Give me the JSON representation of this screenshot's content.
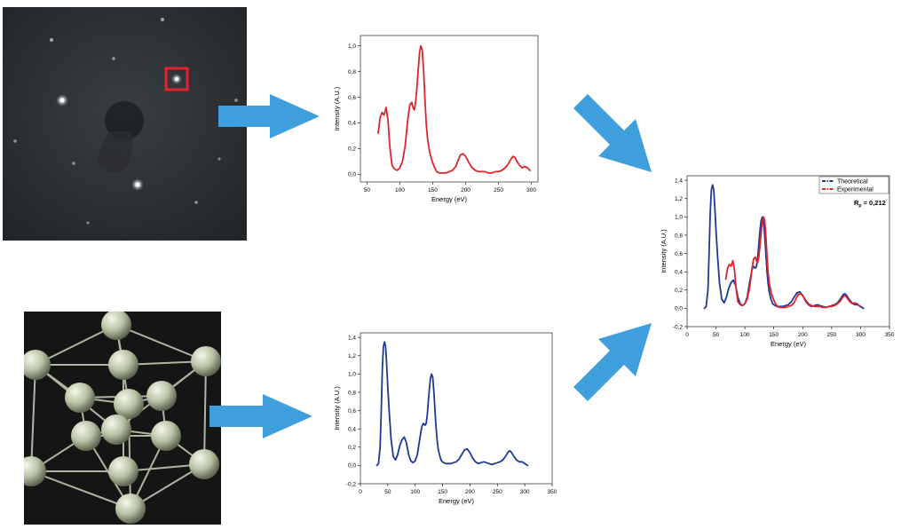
{
  "colors": {
    "theoretical": "#1f3a93",
    "experimental": "#e0242a",
    "arrow": "#3f9fdc",
    "highlight_box": "#e0242a"
  },
  "icons": {
    "leed_pattern": "leed-diffraction-image",
    "crystal_model": "fcc-cluster-model",
    "arrow": "right-arrow-icon"
  },
  "chart_data": [
    {
      "id": "experimental",
      "type": "line",
      "xlabel": "Energy (eV)",
      "ylabel": "Intensity (A.U.)",
      "xlim": [
        40,
        310
      ],
      "ylim": [
        -0.06,
        1.08
      ],
      "xticks": [
        50,
        100,
        150,
        200,
        250,
        300
      ],
      "yticks": [
        0.0,
        0.2,
        0.4,
        0.6,
        0.8,
        1.0
      ],
      "ytick_labels": [
        "0,0",
        "0,2",
        "0,4",
        "0,6",
        "0,8",
        "1,0"
      ],
      "grid": false,
      "series": [
        {
          "color": "#e0242a",
          "x": [
            67,
            70,
            73,
            76,
            79,
            82,
            85,
            88,
            92,
            96,
            100,
            104,
            108,
            112,
            115,
            118,
            120,
            122,
            124,
            126,
            128,
            130,
            132,
            134,
            136,
            138,
            140,
            142,
            145,
            148,
            152,
            156,
            160,
            165,
            170,
            175,
            180,
            185,
            188,
            192,
            196,
            200,
            205,
            210,
            215,
            220,
            225,
            230,
            235,
            240,
            245,
            250,
            255,
            260,
            265,
            268,
            272,
            275,
            278,
            282,
            286,
            290,
            294,
            298
          ],
          "y": [
            0.32,
            0.44,
            0.48,
            0.46,
            0.52,
            0.42,
            0.2,
            0.07,
            0.04,
            0.03,
            0.05,
            0.1,
            0.22,
            0.42,
            0.54,
            0.56,
            0.52,
            0.5,
            0.56,
            0.68,
            0.82,
            0.95,
            1.0,
            0.97,
            0.82,
            0.6,
            0.4,
            0.28,
            0.18,
            0.12,
            0.06,
            0.02,
            0.01,
            0.01,
            0.01,
            0.02,
            0.03,
            0.06,
            0.1,
            0.15,
            0.16,
            0.14,
            0.09,
            0.05,
            0.03,
            0.02,
            0.02,
            0.02,
            0.01,
            0.01,
            0.02,
            0.02,
            0.03,
            0.05,
            0.08,
            0.11,
            0.14,
            0.13,
            0.1,
            0.07,
            0.05,
            0.06,
            0.05,
            0.03
          ]
        }
      ]
    },
    {
      "id": "theoretical",
      "type": "line",
      "xlabel": "Energy (eV)",
      "ylabel": "Intensity (A.U.)",
      "xlim": [
        0,
        350
      ],
      "ylim": [
        -0.2,
        1.45
      ],
      "xticks": [
        0,
        50,
        100,
        150,
        200,
        250,
        300,
        350
      ],
      "yticks": [
        -0.2,
        0.0,
        0.2,
        0.4,
        0.6,
        0.8,
        1.0,
        1.2,
        1.4
      ],
      "ytick_labels": [
        "-0,2",
        "0,0",
        "0,2",
        "0,4",
        "0,6",
        "0,8",
        "1,0",
        "1,2",
        "1,4"
      ],
      "grid": false,
      "series": [
        {
          "color": "#1f3a93",
          "x": [
            30,
            33,
            36,
            38,
            40,
            42,
            44,
            46,
            48,
            50,
            53,
            56,
            60,
            64,
            68,
            72,
            76,
            80,
            84,
            88,
            92,
            96,
            100,
            104,
            108,
            112,
            115,
            118,
            120,
            122,
            124,
            126,
            128,
            130,
            132,
            134,
            136,
            138,
            140,
            142,
            145,
            148,
            152,
            156,
            160,
            165,
            170,
            175,
            180,
            185,
            190,
            195,
            200,
            205,
            210,
            215,
            220,
            225,
            230,
            235,
            240,
            245,
            250,
            255,
            260,
            265,
            270,
            273,
            276,
            280,
            285,
            290,
            295,
            300,
            305
          ],
          "y": [
            0.0,
            0.02,
            0.2,
            0.6,
            1.05,
            1.3,
            1.35,
            1.3,
            1.1,
            0.85,
            0.55,
            0.28,
            0.1,
            0.06,
            0.12,
            0.22,
            0.28,
            0.31,
            0.25,
            0.12,
            0.05,
            0.03,
            0.05,
            0.12,
            0.28,
            0.42,
            0.46,
            0.44,
            0.46,
            0.55,
            0.7,
            0.85,
            0.96,
            1.0,
            0.96,
            0.82,
            0.62,
            0.42,
            0.28,
            0.18,
            0.1,
            0.05,
            0.03,
            0.02,
            0.02,
            0.02,
            0.03,
            0.04,
            0.07,
            0.12,
            0.17,
            0.18,
            0.14,
            0.08,
            0.04,
            0.02,
            0.03,
            0.04,
            0.03,
            0.02,
            0.01,
            0.02,
            0.03,
            0.04,
            0.06,
            0.1,
            0.15,
            0.16,
            0.14,
            0.1,
            0.06,
            0.04,
            0.04,
            0.02,
            0.0
          ]
        }
      ]
    },
    {
      "id": "comparison",
      "type": "line",
      "xlabel": "Energy (eV)",
      "ylabel": "Intensity (A.U.)",
      "xlim": [
        0,
        350
      ],
      "ylim": [
        -0.2,
        1.45
      ],
      "xticks": [
        0,
        50,
        100,
        150,
        200,
        250,
        300,
        350
      ],
      "yticks": [
        -0.2,
        0.0,
        0.2,
        0.4,
        0.6,
        0.8,
        1.0,
        1.2,
        1.4
      ],
      "ytick_labels": [
        "-0,2",
        "0,0",
        "0,2",
        "0,4",
        "0,6",
        "0,8",
        "1,0",
        "1,2",
        "1,4"
      ],
      "grid": false,
      "legend_position": "top-right",
      "rfactor_label": "R",
      "rfactor_sub": "p",
      "rfactor_value": " = 0,212",
      "series": [
        {
          "name": "Theoretical",
          "color": "#1f3a93",
          "x": [
            30,
            33,
            36,
            38,
            40,
            42,
            44,
            46,
            48,
            50,
            53,
            56,
            60,
            64,
            68,
            72,
            76,
            80,
            84,
            88,
            92,
            96,
            100,
            104,
            108,
            112,
            115,
            118,
            120,
            122,
            124,
            126,
            128,
            130,
            132,
            134,
            136,
            138,
            140,
            142,
            145,
            148,
            152,
            156,
            160,
            165,
            170,
            175,
            180,
            185,
            190,
            195,
            200,
            205,
            210,
            215,
            220,
            225,
            230,
            235,
            240,
            245,
            250,
            255,
            260,
            265,
            270,
            273,
            276,
            280,
            285,
            290,
            295,
            300,
            305
          ],
          "y": [
            0.0,
            0.02,
            0.2,
            0.6,
            1.05,
            1.3,
            1.35,
            1.3,
            1.1,
            0.85,
            0.55,
            0.28,
            0.1,
            0.06,
            0.12,
            0.22,
            0.28,
            0.31,
            0.25,
            0.12,
            0.05,
            0.03,
            0.05,
            0.12,
            0.28,
            0.42,
            0.46,
            0.44,
            0.46,
            0.55,
            0.7,
            0.85,
            0.96,
            1.0,
            0.96,
            0.82,
            0.62,
            0.42,
            0.28,
            0.18,
            0.1,
            0.05,
            0.03,
            0.02,
            0.02,
            0.02,
            0.03,
            0.04,
            0.07,
            0.12,
            0.17,
            0.18,
            0.14,
            0.08,
            0.04,
            0.02,
            0.03,
            0.04,
            0.03,
            0.02,
            0.01,
            0.02,
            0.03,
            0.04,
            0.06,
            0.1,
            0.15,
            0.16,
            0.14,
            0.1,
            0.06,
            0.04,
            0.04,
            0.02,
            0.0
          ]
        },
        {
          "name": "Experimental",
          "color": "#e0242a",
          "x": [
            67,
            70,
            73,
            76,
            79,
            82,
            85,
            88,
            92,
            96,
            100,
            104,
            108,
            112,
            115,
            118,
            120,
            122,
            124,
            126,
            128,
            130,
            132,
            134,
            136,
            138,
            140,
            142,
            145,
            148,
            152,
            156,
            160,
            165,
            170,
            175,
            180,
            185,
            188,
            192,
            196,
            200,
            205,
            210,
            215,
            220,
            225,
            230,
            235,
            240,
            245,
            250,
            255,
            260,
            265,
            268,
            272,
            275,
            278,
            282,
            286,
            290,
            294,
            298
          ],
          "y": [
            0.32,
            0.44,
            0.48,
            0.46,
            0.52,
            0.42,
            0.2,
            0.07,
            0.04,
            0.03,
            0.05,
            0.1,
            0.22,
            0.42,
            0.54,
            0.56,
            0.52,
            0.5,
            0.56,
            0.68,
            0.82,
            0.95,
            1.0,
            0.97,
            0.82,
            0.6,
            0.4,
            0.28,
            0.18,
            0.12,
            0.06,
            0.02,
            0.01,
            0.01,
            0.01,
            0.02,
            0.03,
            0.06,
            0.1,
            0.15,
            0.16,
            0.14,
            0.09,
            0.05,
            0.03,
            0.02,
            0.02,
            0.02,
            0.01,
            0.01,
            0.02,
            0.02,
            0.03,
            0.05,
            0.08,
            0.11,
            0.14,
            0.13,
            0.1,
            0.07,
            0.05,
            0.06,
            0.05,
            0.03
          ]
        }
      ]
    }
  ]
}
